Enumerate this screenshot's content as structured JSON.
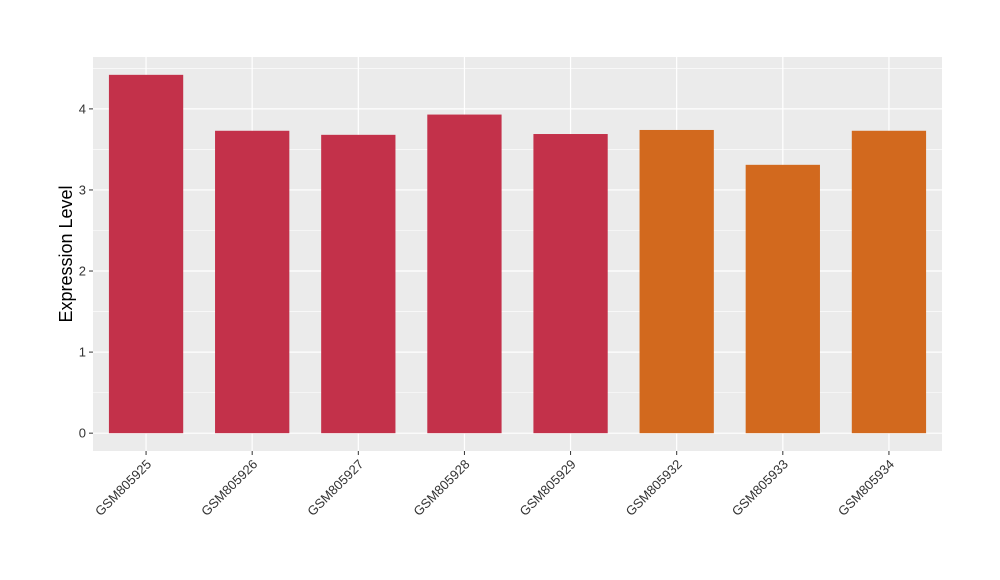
{
  "chart_data": {
    "type": "bar",
    "title": "",
    "xlabel": "",
    "ylabel": "Expression Level",
    "categories": [
      "GSM805925",
      "GSM805926",
      "GSM805927",
      "GSM805928",
      "GSM805929",
      "GSM805932",
      "GSM805933",
      "GSM805934"
    ],
    "values": [
      4.42,
      3.73,
      3.68,
      3.93,
      3.69,
      3.74,
      3.31,
      3.73
    ],
    "bar_colors": [
      "#C3314A",
      "#C3314A",
      "#C3314A",
      "#C3314A",
      "#C3314A",
      "#D2691E",
      "#D2691E",
      "#D2691E"
    ],
    "yticks": [
      0,
      1,
      2,
      3,
      4
    ],
    "ylim": [
      -0.22,
      4.64
    ],
    "grid": true,
    "panel_background": "#EBEBEB",
    "legend": "none"
  }
}
